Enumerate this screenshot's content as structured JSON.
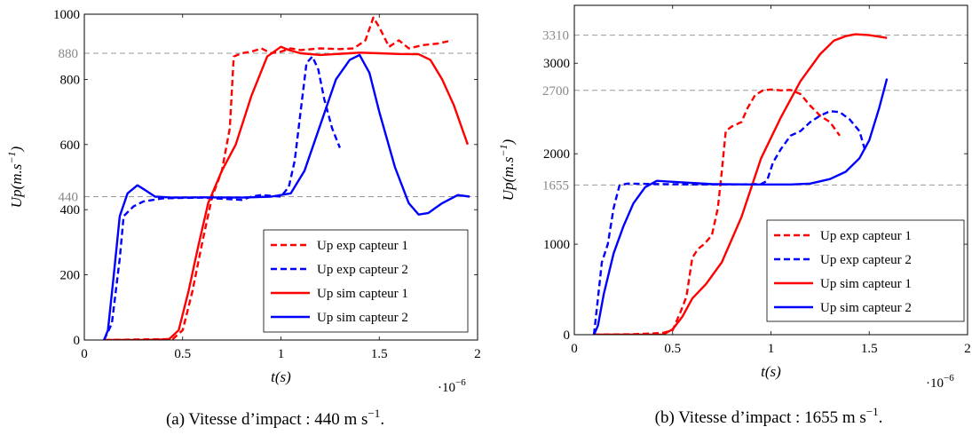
{
  "chart_data": [
    {
      "type": "line",
      "caption": "(a) Vitesse d’impact : 440 m s−1.",
      "xlabel": "t(s)",
      "ylabel": "Up(m.s−1)",
      "x_multiplier": "·10−6",
      "xlim": [
        0,
        2
      ],
      "ylim": [
        0,
        1000
      ],
      "xticks": [
        0,
        0.5,
        1,
        1.5,
        2
      ],
      "xtick_labels": [
        "0",
        "0.5",
        "1",
        "1.5",
        "2"
      ],
      "yticks": [
        0,
        200,
        400,
        600,
        800,
        1000
      ],
      "ytick_labels": [
        "0",
        "200",
        "400",
        "600",
        "800",
        "1000"
      ],
      "ref_lines": [
        440,
        880
      ],
      "ref_labels": [
        "440",
        "880"
      ],
      "legend_position": "bottom-right",
      "series": [
        {
          "name": "Up exp capteur 1",
          "color": "#ff0000",
          "style": "dashed",
          "points": [
            [
              0.1,
              0
            ],
            [
              0.3,
              2
            ],
            [
              0.45,
              3
            ],
            [
              0.5,
              30
            ],
            [
              0.55,
              150
            ],
            [
              0.6,
              300
            ],
            [
              0.65,
              440
            ],
            [
              0.7,
              520
            ],
            [
              0.74,
              650
            ],
            [
              0.76,
              870
            ],
            [
              0.8,
              880
            ],
            [
              0.85,
              885
            ],
            [
              0.9,
              895
            ],
            [
              0.95,
              880
            ],
            [
              1.0,
              885
            ],
            [
              1.05,
              895
            ],
            [
              1.1,
              890
            ],
            [
              1.2,
              895
            ],
            [
              1.3,
              893
            ],
            [
              1.37,
              895
            ],
            [
              1.43,
              920
            ],
            [
              1.47,
              990
            ],
            [
              1.5,
              960
            ],
            [
              1.55,
              900
            ],
            [
              1.6,
              920
            ],
            [
              1.65,
              895
            ],
            [
              1.72,
              905
            ],
            [
              1.8,
              910
            ],
            [
              1.87,
              920
            ]
          ]
        },
        {
          "name": "Up exp capteur 2",
          "color": "#0000ff",
          "style": "dashed",
          "points": [
            [
              0.1,
              0
            ],
            [
              0.14,
              50
            ],
            [
              0.18,
              250
            ],
            [
              0.2,
              380
            ],
            [
              0.25,
              410
            ],
            [
              0.3,
              425
            ],
            [
              0.4,
              435
            ],
            [
              0.6,
              437
            ],
            [
              0.8,
              430
            ],
            [
              0.85,
              440
            ],
            [
              0.9,
              445
            ],
            [
              1.0,
              440
            ],
            [
              1.04,
              470
            ],
            [
              1.07,
              550
            ],
            [
              1.1,
              700
            ],
            [
              1.13,
              850
            ],
            [
              1.16,
              870
            ],
            [
              1.19,
              830
            ],
            [
              1.22,
              740
            ],
            [
              1.26,
              650
            ],
            [
              1.3,
              590
            ]
          ]
        },
        {
          "name": "Up sim capteur 1",
          "color": "#ff0000",
          "style": "solid",
          "points": [
            [
              0.1,
              0
            ],
            [
              0.3,
              0
            ],
            [
              0.43,
              2
            ],
            [
              0.48,
              30
            ],
            [
              0.53,
              150
            ],
            [
              0.58,
              290
            ],
            [
              0.63,
              420
            ],
            [
              0.7,
              520
            ],
            [
              0.77,
              600
            ],
            [
              0.85,
              750
            ],
            [
              0.93,
              870
            ],
            [
              1.0,
              900
            ],
            [
              1.04,
              890
            ],
            [
              1.1,
              880
            ],
            [
              1.2,
              875
            ],
            [
              1.35,
              880
            ],
            [
              1.4,
              882
            ],
            [
              1.5,
              880
            ],
            [
              1.6,
              878
            ],
            [
              1.7,
              877
            ],
            [
              1.76,
              860
            ],
            [
              1.82,
              800
            ],
            [
              1.88,
              720
            ],
            [
              1.95,
              600
            ]
          ]
        },
        {
          "name": "Up sim capteur 2",
          "color": "#0000ff",
          "style": "solid",
          "points": [
            [
              0.1,
              0
            ],
            [
              0.12,
              30
            ],
            [
              0.15,
              200
            ],
            [
              0.18,
              380
            ],
            [
              0.22,
              450
            ],
            [
              0.27,
              475
            ],
            [
              0.31,
              460
            ],
            [
              0.36,
              440
            ],
            [
              0.45,
              437
            ],
            [
              0.6,
              438
            ],
            [
              0.8,
              437
            ],
            [
              0.95,
              440
            ],
            [
              1.05,
              450
            ],
            [
              1.12,
              520
            ],
            [
              1.2,
              660
            ],
            [
              1.28,
              800
            ],
            [
              1.35,
              860
            ],
            [
              1.4,
              875
            ],
            [
              1.45,
              820
            ],
            [
              1.5,
              700
            ],
            [
              1.58,
              530
            ],
            [
              1.65,
              420
            ],
            [
              1.7,
              385
            ],
            [
              1.75,
              390
            ],
            [
              1.82,
              420
            ],
            [
              1.9,
              445
            ],
            [
              1.96,
              440
            ]
          ]
        }
      ]
    },
    {
      "type": "line",
      "caption": "(b) Vitesse d’impact : 1655 m s−1.",
      "xlabel": "t(s)",
      "ylabel": "Up(m.s−1)",
      "x_multiplier": "·10−6",
      "xlim": [
        0,
        2
      ],
      "ylim": [
        0,
        3640
      ],
      "xticks": [
        0,
        0.5,
        1,
        1.5,
        2
      ],
      "xtick_labels": [
        "0",
        "0.5",
        "1",
        "1.5",
        "2"
      ],
      "yticks": [
        0,
        1000,
        2000,
        3000
      ],
      "ytick_labels": [
        "0",
        "1000",
        "2000",
        "3000"
      ],
      "ref_lines": [
        1655,
        2700,
        3310
      ],
      "ref_labels": [
        "1655",
        "2700",
        "3310"
      ],
      "legend_position": "bottom-right",
      "series": [
        {
          "name": "Up exp capteur 1",
          "color": "#ff0000",
          "style": "dashed",
          "points": [
            [
              0.1,
              0
            ],
            [
              0.3,
              5
            ],
            [
              0.45,
              20
            ],
            [
              0.5,
              50
            ],
            [
              0.54,
              250
            ],
            [
              0.57,
              420
            ],
            [
              0.6,
              850
            ],
            [
              0.63,
              950
            ],
            [
              0.66,
              1000
            ],
            [
              0.7,
              1100
            ],
            [
              0.73,
              1400
            ],
            [
              0.75,
              1800
            ],
            [
              0.77,
              2250
            ],
            [
              0.8,
              2300
            ],
            [
              0.85,
              2350
            ],
            [
              0.88,
              2500
            ],
            [
              0.92,
              2650
            ],
            [
              0.96,
              2700
            ],
            [
              1.0,
              2710
            ],
            [
              1.05,
              2700
            ],
            [
              1.1,
              2705
            ],
            [
              1.15,
              2660
            ],
            [
              1.2,
              2530
            ],
            [
              1.25,
              2420
            ],
            [
              1.3,
              2350
            ],
            [
              1.35,
              2200
            ]
          ]
        },
        {
          "name": "Up exp capteur 2",
          "color": "#0000ff",
          "style": "dashed",
          "points": [
            [
              0.1,
              0
            ],
            [
              0.12,
              400
            ],
            [
              0.14,
              800
            ],
            [
              0.17,
              1000
            ],
            [
              0.2,
              1400
            ],
            [
              0.23,
              1650
            ],
            [
              0.27,
              1670
            ],
            [
              0.4,
              1665
            ],
            [
              0.6,
              1660
            ],
            [
              0.8,
              1660
            ],
            [
              0.95,
              1665
            ],
            [
              0.98,
              1700
            ],
            [
              1.01,
              1900
            ],
            [
              1.05,
              2050
            ],
            [
              1.1,
              2200
            ],
            [
              1.15,
              2250
            ],
            [
              1.2,
              2350
            ],
            [
              1.25,
              2420
            ],
            [
              1.3,
              2470
            ],
            [
              1.35,
              2460
            ],
            [
              1.4,
              2380
            ],
            [
              1.45,
              2250
            ],
            [
              1.48,
              2030
            ]
          ]
        },
        {
          "name": "Up sim capteur 1",
          "color": "#ff0000",
          "style": "solid",
          "points": [
            [
              0.1,
              0
            ],
            [
              0.3,
              0
            ],
            [
              0.45,
              0
            ],
            [
              0.5,
              60
            ],
            [
              0.55,
              200
            ],
            [
              0.6,
              400
            ],
            [
              0.67,
              560
            ],
            [
              0.75,
              800
            ],
            [
              0.85,
              1300
            ],
            [
              0.95,
              1950
            ],
            [
              1.05,
              2400
            ],
            [
              1.15,
              2800
            ],
            [
              1.25,
              3100
            ],
            [
              1.32,
              3250
            ],
            [
              1.38,
              3300
            ],
            [
              1.43,
              3320
            ],
            [
              1.5,
              3310
            ],
            [
              1.59,
              3280
            ]
          ]
        },
        {
          "name": "Up sim capteur 2",
          "color": "#0000ff",
          "style": "solid",
          "points": [
            [
              0.1,
              0
            ],
            [
              0.12,
              100
            ],
            [
              0.15,
              450
            ],
            [
              0.2,
              900
            ],
            [
              0.25,
              1200
            ],
            [
              0.3,
              1450
            ],
            [
              0.36,
              1630
            ],
            [
              0.42,
              1700
            ],
            [
              0.5,
              1690
            ],
            [
              0.7,
              1665
            ],
            [
              0.9,
              1660
            ],
            [
              1.0,
              1660
            ],
            [
              1.1,
              1660
            ],
            [
              1.2,
              1670
            ],
            [
              1.3,
              1720
            ],
            [
              1.38,
              1800
            ],
            [
              1.45,
              1950
            ],
            [
              1.5,
              2150
            ],
            [
              1.55,
              2500
            ],
            [
              1.59,
              2830
            ]
          ]
        }
      ]
    }
  ]
}
